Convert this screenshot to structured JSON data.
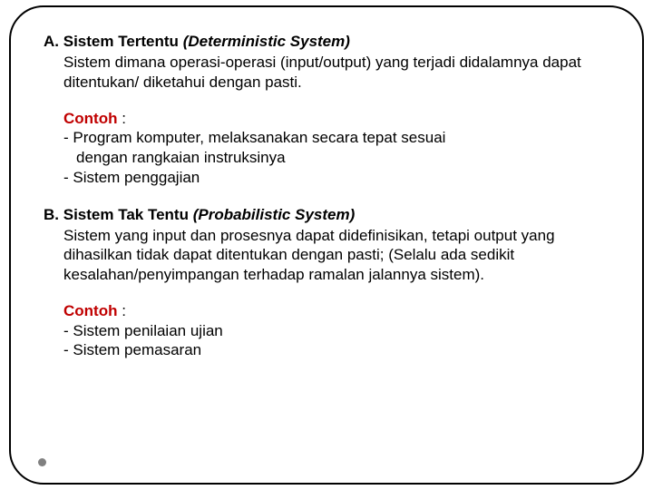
{
  "frame": {
    "border_color": "#000000",
    "border_radius": 38,
    "border_width": 2,
    "background": "#ffffff"
  },
  "sectionA": {
    "label": "A.",
    "title_bold": "Sistem Tertentu",
    "title_italic": "(Deterministic System)",
    "body": "Sistem dimana operasi-operasi (input/output) yang terjadi didalamnya dapat ditentukan/ diketahui dengan pasti.",
    "contoh_label": "Contoh",
    "contoh_colon": " :",
    "example1_line1": "- Program komputer,  melaksanakan  secara  tepat  sesuai",
    "example1_line2": "dengan rangkaian instruksinya",
    "example2": "- Sistem penggajian"
  },
  "sectionB": {
    "label": "B.",
    "title_bold": "Sistem Tak Tentu",
    "title_italic": "(Probabilistic System)",
    "body": "Sistem yang input dan prosesnya dapat didefinisikan, tetapi output yang dihasilkan tidak dapat ditentukan dengan pasti; (Selalu ada sedikit kesalahan/penyimpangan terhadap ramalan jalannya sistem).",
    "contoh_label": "Contoh",
    "contoh_colon": " :",
    "example1": "- Sistem penilaian ujian",
    "example2": "- Sistem pemasaran"
  },
  "colors": {
    "text": "#000000",
    "contoh": "#c00000",
    "dot": "#808080"
  },
  "typography": {
    "font_family": "Verdana",
    "heading_size": 17,
    "body_size": 17
  }
}
